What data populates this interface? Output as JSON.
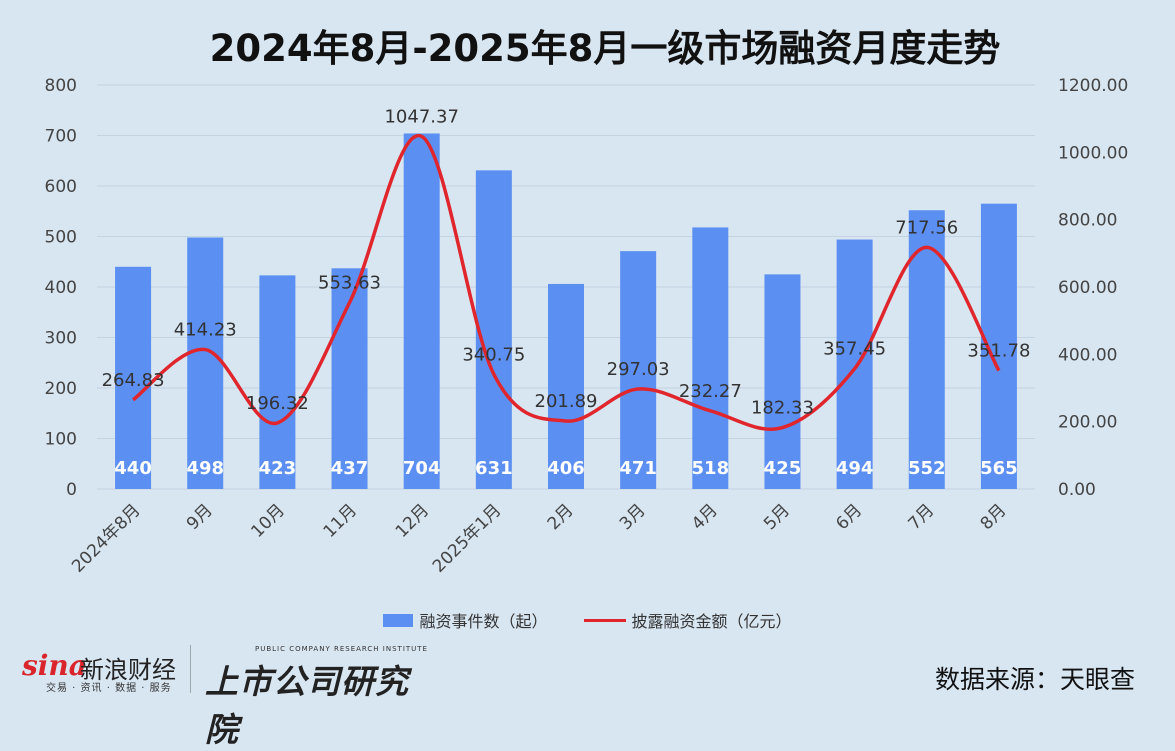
{
  "chart_data": {
    "type": "bar",
    "title": "2024年8月-2025年8月一级市场融资月度走势",
    "categories": [
      "2024年8月",
      "9月",
      "10月",
      "11月",
      "12月",
      "2025年1月",
      "2月",
      "3月",
      "4月",
      "5月",
      "6月",
      "7月",
      "8月"
    ],
    "series": [
      {
        "name": "融资事件数（起）",
        "type": "bar",
        "axis": "left",
        "color": "#5b8ff2",
        "values": [
          440,
          498,
          423,
          437,
          704,
          631,
          406,
          471,
          518,
          425,
          494,
          552,
          565
        ],
        "labels": [
          "440",
          "498",
          "423",
          "437",
          "704",
          "631",
          "406",
          "471",
          "518",
          "425",
          "494",
          "552",
          "565"
        ]
      },
      {
        "name": "披露融资金额（亿元）",
        "type": "line",
        "axis": "right",
        "color": "#e0262c",
        "values": [
          264.83,
          414.23,
          196.32,
          553.63,
          1047.37,
          340.75,
          201.89,
          297.03,
          232.27,
          182.33,
          357.45,
          717.56,
          351.78
        ],
        "labels": [
          "264.83",
          "414.23",
          "196.32",
          "553.63",
          "1047.37",
          "340.75",
          "201.89",
          "297.03",
          "232.27",
          "182.33",
          "357.45",
          "717.56",
          "351.78"
        ]
      }
    ],
    "y_left": {
      "min": 0,
      "max": 800,
      "ticks": [
        "0",
        "100",
        "200",
        "300",
        "400",
        "500",
        "600",
        "700",
        "800"
      ]
    },
    "y_right": {
      "min": 0,
      "max": 1200,
      "ticks": [
        "0.00",
        "200.00",
        "400.00",
        "600.00",
        "800.00",
        "1000.00",
        "1200.00"
      ]
    },
    "grid": true,
    "legend": "bottom"
  },
  "legend": {
    "bar_label": "融资事件数（起）",
    "line_label": "披露融资金额（亿元）"
  },
  "footer": {
    "sina_mark": "sina",
    "sina_name": "新浪财经",
    "sina_sub": "交易 · 资讯 · 数据 · 服务",
    "research_sub": "PUBLIC COMPANY RESEARCH INSTITUTE",
    "research_name": "上市公司研究院",
    "source": "数据来源：天眼查"
  }
}
